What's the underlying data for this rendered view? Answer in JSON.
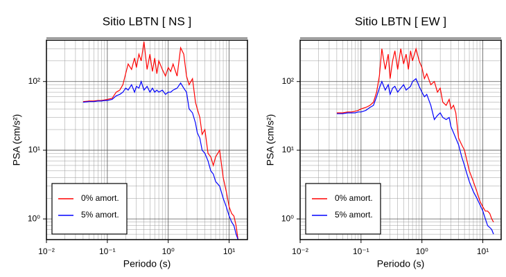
{
  "chart_data": [
    {
      "type": "line",
      "title": "Sitio LBTN [ NS ]",
      "xlabel": "Periodo (s)",
      "ylabel": "PSA (cm/s²)",
      "xlog": true,
      "ylog": true,
      "grid": true,
      "minor_grid": true,
      "legend": "lower left",
      "xlim": [
        0.01,
        20
      ],
      "ylim": [
        0.5,
        400
      ],
      "xticks": [
        {
          "value": 0.01,
          "label": "10⁻²"
        },
        {
          "value": 0.1,
          "label": "10⁻¹"
        },
        {
          "value": 1,
          "label": "10⁰"
        },
        {
          "value": 10,
          "label": "10¹"
        }
      ],
      "yticks": [
        {
          "value": 1,
          "label": "10⁰"
        },
        {
          "value": 10,
          "label": "10¹"
        },
        {
          "value": 100,
          "label": "10²"
        }
      ],
      "x": [
        0.04,
        0.05,
        0.06,
        0.07,
        0.08,
        0.09,
        0.1,
        0.12,
        0.14,
        0.16,
        0.18,
        0.2,
        0.22,
        0.25,
        0.28,
        0.3,
        0.33,
        0.36,
        0.4,
        0.45,
        0.5,
        0.55,
        0.6,
        0.65,
        0.7,
        0.8,
        0.9,
        1.0,
        1.1,
        1.2,
        1.4,
        1.6,
        1.8,
        2.0,
        2.2,
        2.5,
        2.8,
        3.0,
        3.3,
        3.6,
        4.0,
        4.5,
        5.0,
        5.5,
        6.0,
        7.0,
        8.0,
        9,
        10,
        11,
        12,
        13,
        14
      ],
      "series": [
        {
          "name": "0% amort.",
          "color": "#ff0000",
          "values": [
            51,
            52,
            52,
            53,
            53,
            54,
            55,
            57,
            70,
            75,
            90,
            130,
            180,
            150,
            220,
            160,
            250,
            200,
            380,
            150,
            250,
            140,
            220,
            130,
            200,
            150,
            120,
            160,
            140,
            180,
            120,
            310,
            250,
            120,
            90,
            110,
            50,
            40,
            30,
            17,
            20,
            9,
            8,
            6,
            8,
            10,
            4,
            2.5,
            1.5,
            1.2,
            1.1,
            0.8,
            0.5
          ]
        },
        {
          "name": "5% amort.",
          "color": "#0000ff",
          "values": [
            50,
            51,
            51,
            52,
            52,
            53,
            53,
            55,
            62,
            65,
            70,
            80,
            75,
            90,
            70,
            85,
            80,
            100,
            75,
            85,
            70,
            80,
            70,
            75,
            70,
            75,
            65,
            70,
            70,
            75,
            80,
            95,
            80,
            70,
            40,
            35,
            25,
            18,
            15,
            10,
            9,
            7,
            5,
            4.5,
            3.5,
            3,
            2,
            1.5,
            1.1,
            0.9,
            0.8,
            0.6,
            0.5
          ]
        }
      ]
    },
    {
      "type": "line",
      "title": "Sitio LBTN [ EW ]",
      "xlabel": "Periodo (s)",
      "ylabel": "PSA (cm/s²)",
      "xlog": true,
      "ylog": true,
      "grid": true,
      "minor_grid": true,
      "legend": "lower left",
      "xlim": [
        0.01,
        20
      ],
      "ylim": [
        0.5,
        400
      ],
      "xticks": [
        {
          "value": 0.01,
          "label": "10⁻²"
        },
        {
          "value": 0.1,
          "label": "10⁻¹"
        },
        {
          "value": 1,
          "label": "10⁰"
        },
        {
          "value": 10,
          "label": "10¹"
        }
      ],
      "yticks": [
        {
          "value": 1,
          "label": "10⁰"
        },
        {
          "value": 10,
          "label": "10¹"
        },
        {
          "value": 100,
          "label": "10²"
        }
      ],
      "x": [
        0.04,
        0.05,
        0.06,
        0.07,
        0.08,
        0.09,
        0.1,
        0.12,
        0.14,
        0.16,
        0.18,
        0.2,
        0.22,
        0.25,
        0.28,
        0.3,
        0.33,
        0.36,
        0.4,
        0.45,
        0.5,
        0.55,
        0.6,
        0.65,
        0.7,
        0.8,
        0.9,
        1.0,
        1.1,
        1.2,
        1.4,
        1.6,
        1.8,
        2.0,
        2.2,
        2.5,
        2.8,
        3.0,
        3.3,
        3.6,
        4.0,
        4.5,
        5.0,
        5.5,
        6.0,
        7.0,
        8.0,
        9,
        10,
        11,
        12,
        13,
        14,
        15
      ],
      "series": [
        {
          "name": "0% amort.",
          "color": "#ff0000",
          "values": [
            35,
            35,
            36,
            36,
            37,
            38,
            40,
            42,
            45,
            50,
            70,
            120,
            300,
            150,
            250,
            110,
            200,
            280,
            150,
            300,
            180,
            250,
            150,
            280,
            200,
            300,
            200,
            160,
            110,
            130,
            90,
            100,
            70,
            80,
            50,
            45,
            55,
            40,
            45,
            35,
            15,
            12,
            10,
            7,
            5,
            3.5,
            2.5,
            1.8,
            1.5,
            1.3,
            1.3,
            1.2,
            1.0,
            0.9
          ]
        },
        {
          "name": "5% amort.",
          "color": "#0000ff",
          "values": [
            34,
            34,
            35,
            35,
            35,
            36,
            36,
            38,
            42,
            45,
            60,
            80,
            100,
            75,
            90,
            65,
            80,
            85,
            70,
            80,
            90,
            75,
            80,
            85,
            100,
            110,
            85,
            70,
            60,
            65,
            45,
            28,
            32,
            35,
            30,
            28,
            30,
            22,
            18,
            15,
            12,
            8,
            6,
            4.5,
            3.5,
            2.5,
            2,
            1.6,
            1.3,
            1.0,
            0.8,
            0.75,
            0.7,
            0.6
          ]
        }
      ]
    }
  ]
}
